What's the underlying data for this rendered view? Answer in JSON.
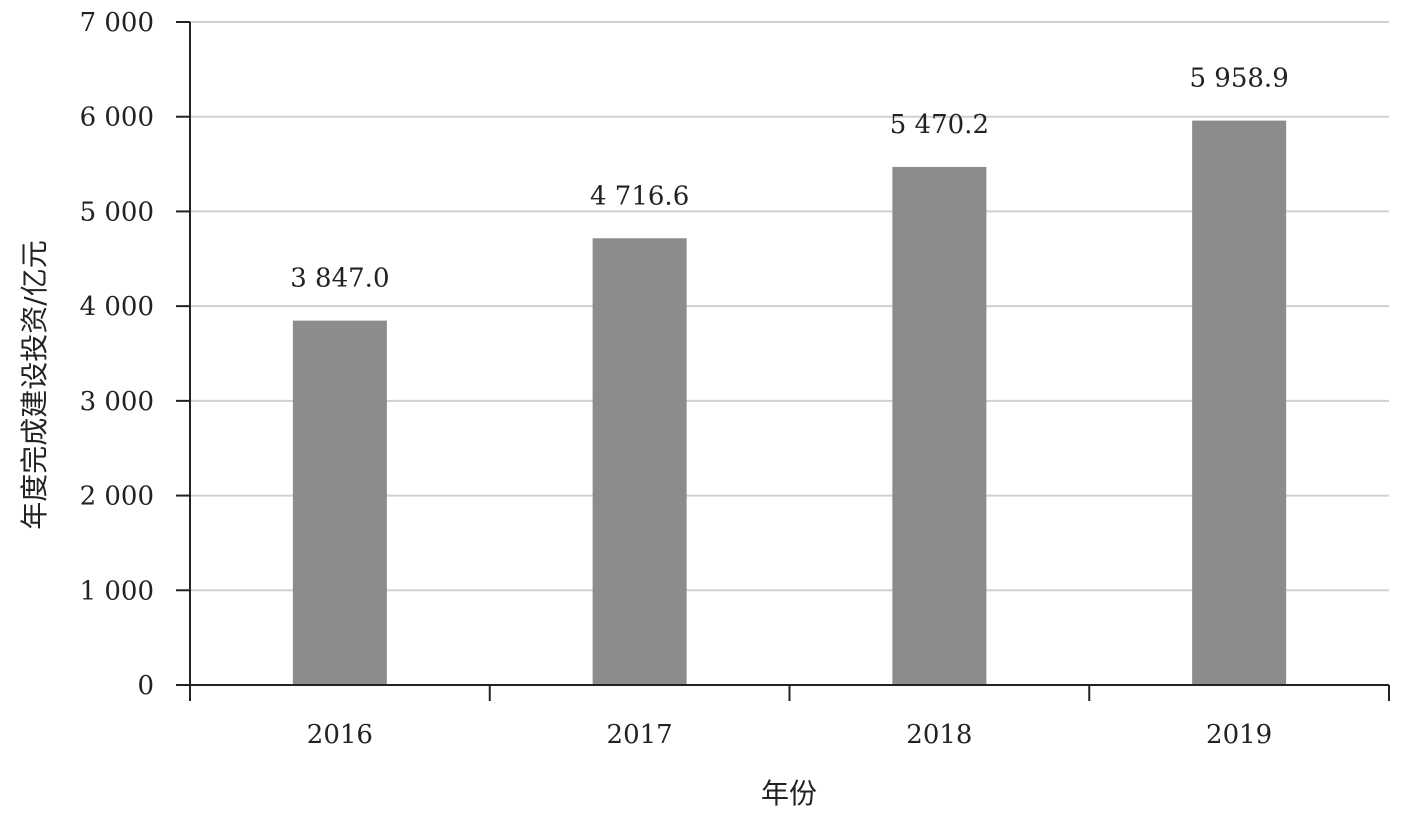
{
  "chart_data": {
    "type": "bar",
    "categories": [
      "2016",
      "2017",
      "2018",
      "2019"
    ],
    "values": [
      3847.0,
      4716.6,
      5470.2,
      5958.9
    ],
    "data_labels": [
      "3 847.0",
      "4 716.6",
      "5 470.2",
      "5 958.9"
    ],
    "ylabel": "年度完成建设投资/亿元",
    "xlabel": "年份",
    "ylim": [
      0,
      7000
    ],
    "yticks": [
      0,
      1000,
      2000,
      3000,
      4000,
      5000,
      6000,
      7000
    ],
    "ytick_labels": [
      "0",
      "1 000",
      "2 000",
      "3 000",
      "4 000",
      "5 000",
      "6 000",
      "7 000"
    ],
    "grid": true,
    "colors": {
      "bar": "#8c8c8c",
      "grid": "#d0d0d0",
      "axis": "#222222"
    }
  }
}
